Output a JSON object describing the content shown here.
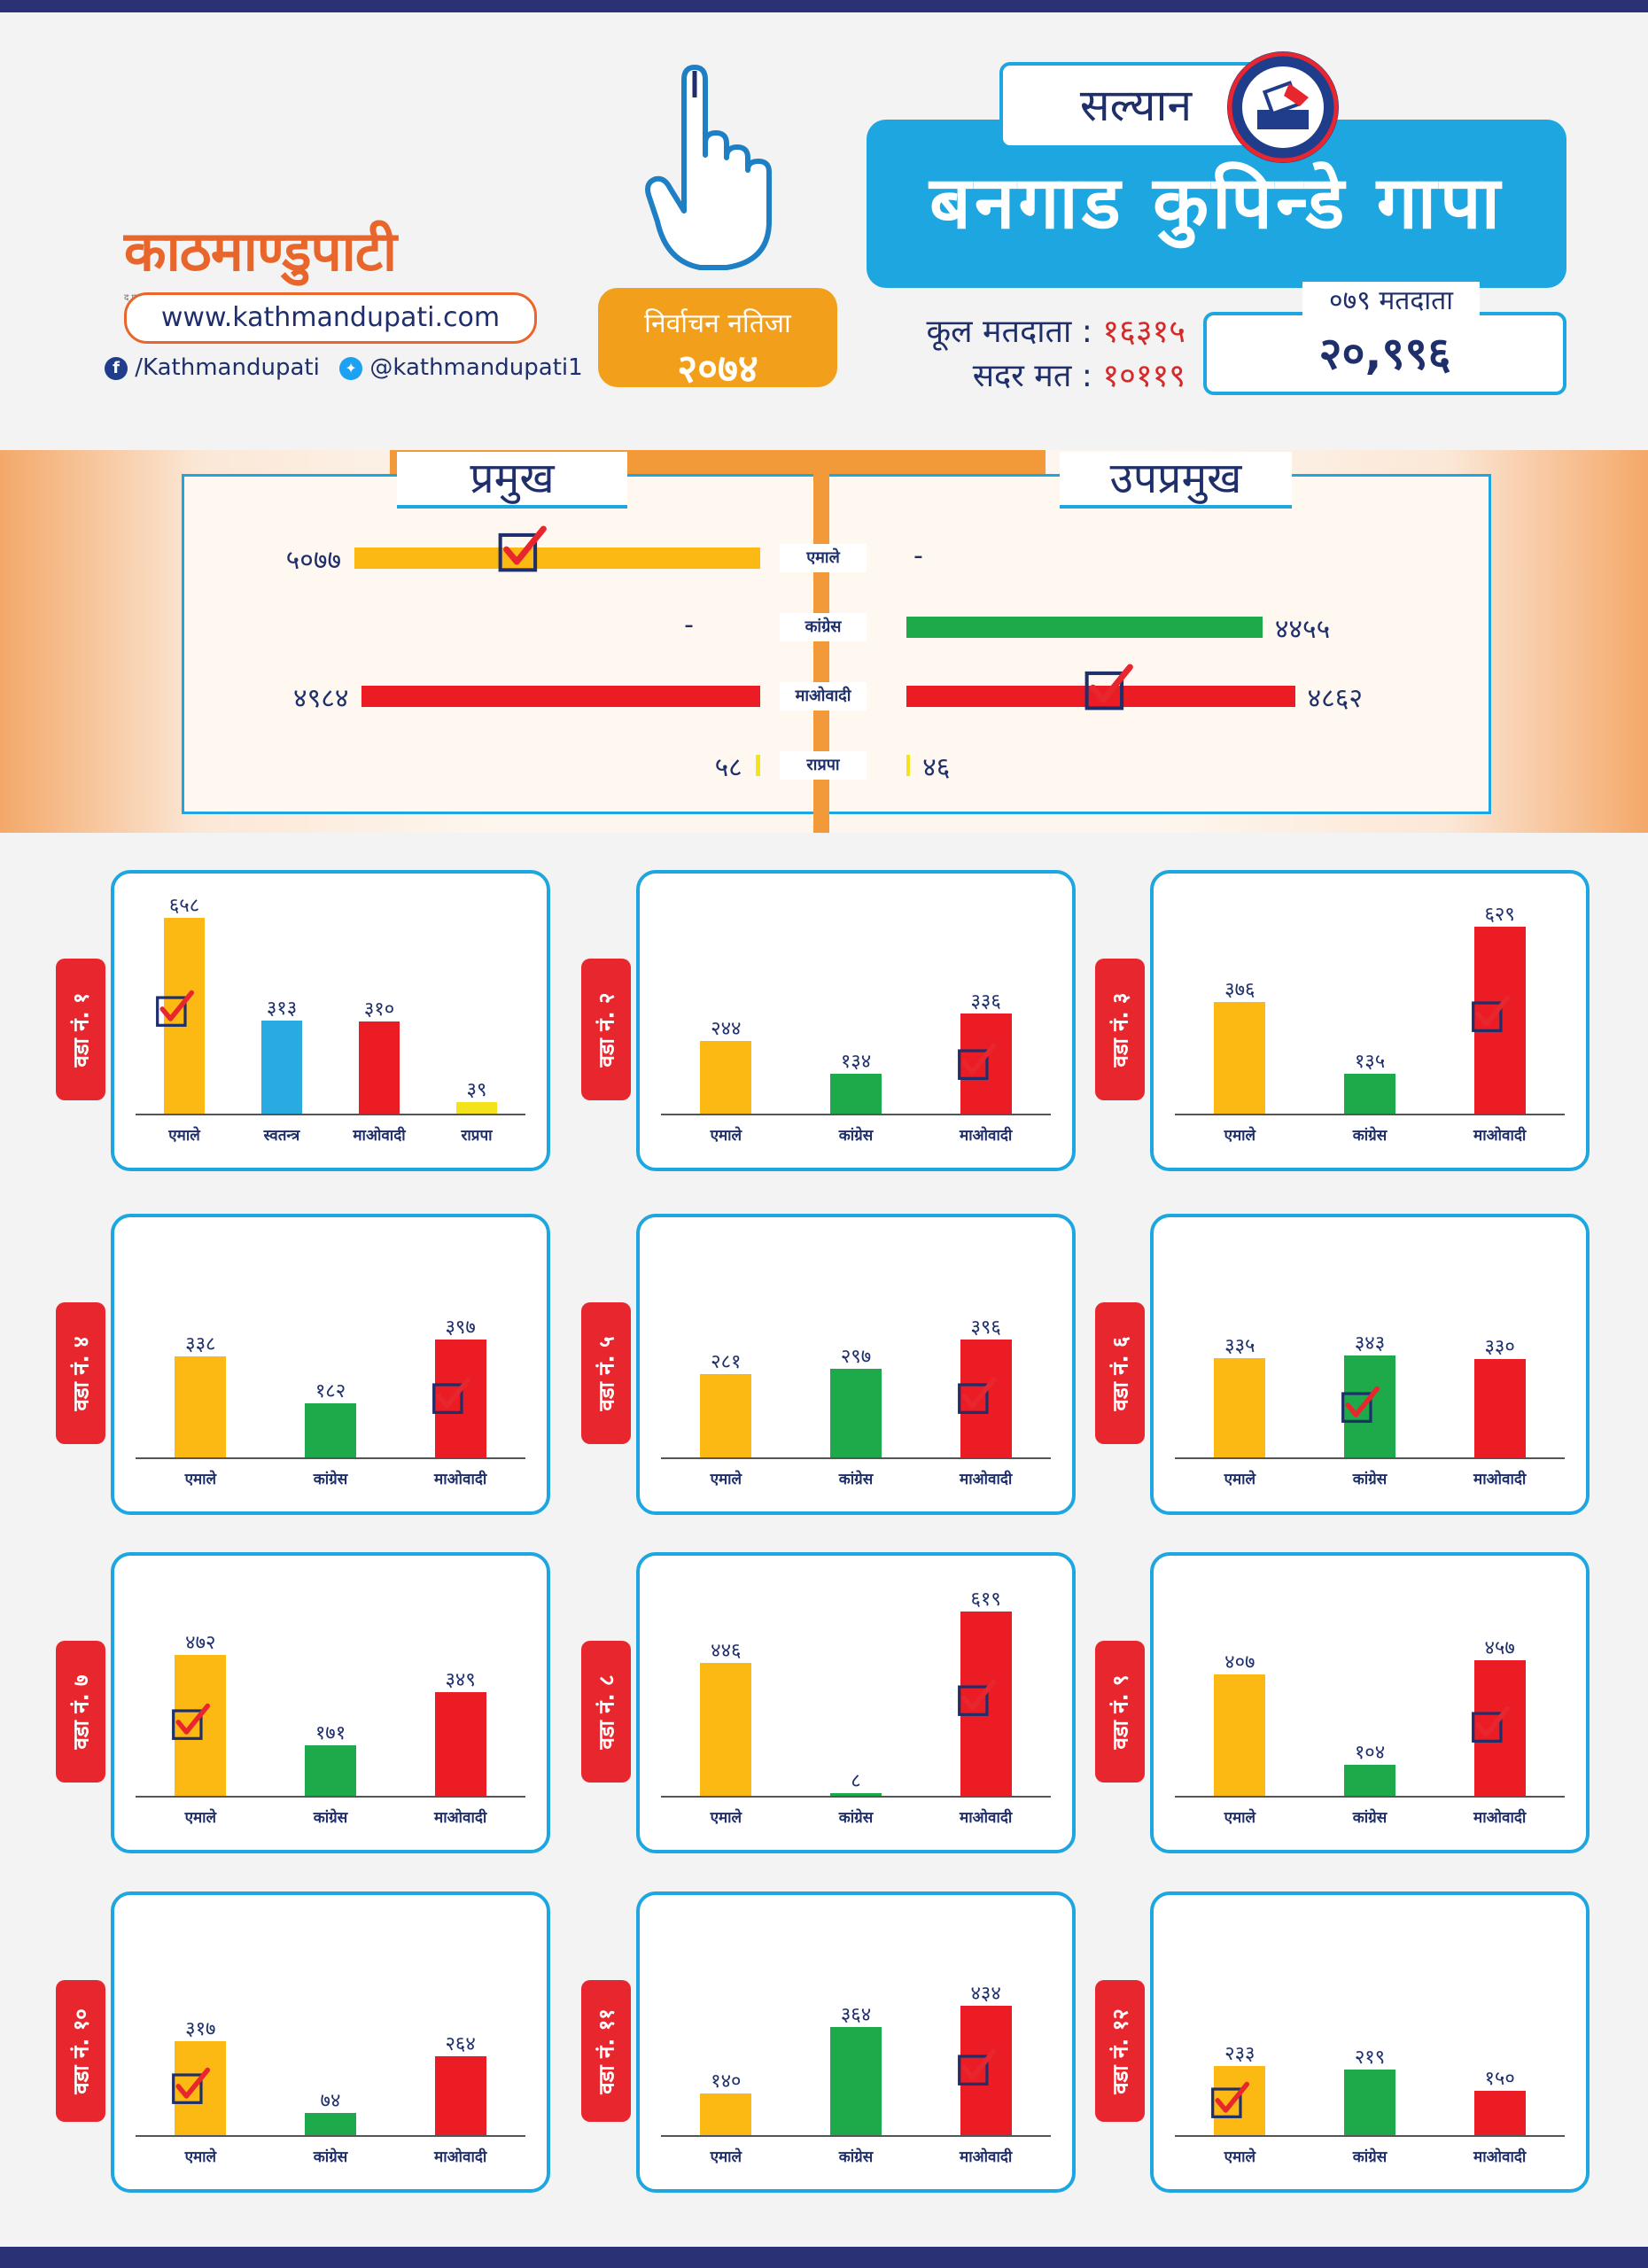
{
  "brand": {
    "logo_text": "काठमाण्डुपाटी",
    "tagline": "द फर्स्ट हाउस",
    "url": "www.kathmandupati.com",
    "facebook": "/Kathmandupati",
    "twitter": "@kathmandupati1"
  },
  "header": {
    "result_line1": "निर्वाचन नतिजा",
    "result_line2": "२०७४",
    "district": "सल्यान",
    "municipality": "बनगाड कुपिन्डे गापा",
    "total_voters_label": "कूल मतदाता :",
    "total_voters": "१६३१५",
    "valid_votes_label": "सदर मत :",
    "valid_votes": "१०११९",
    "voters_079_label": "०७९ मतदाता",
    "voters_079": "२०,९९६"
  },
  "colors": {
    "emale": "#fdb913",
    "congress": "#1eaa4b",
    "maoist": "#ec1c24",
    "rpp": "#f4e21d",
    "independent": "#29aae1",
    "accent": "#1ea6e0",
    "orange": "#f29a3a"
  },
  "summary": {
    "chief_title": "प्रमुख",
    "deputy_title": "उपप्रमुख",
    "rows": [
      {
        "party": "एमाले",
        "chief": "५०७७",
        "deputy": "-",
        "color": "#fdb913",
        "chief_win": true,
        "deputy_win": false
      },
      {
        "party": "कांग्रेस",
        "chief": "-",
        "deputy": "४४५५",
        "color": "#1eaa4b",
        "chief_win": false,
        "deputy_win": false
      },
      {
        "party": "माओवादी",
        "chief": "४९८४",
        "deputy": "४८६२",
        "color": "#ec1c24",
        "chief_win": false,
        "deputy_win": true
      },
      {
        "party": "राप्रपा",
        "chief": "५८",
        "deputy": "४६",
        "color": "#f4e21d",
        "chief_win": false,
        "deputy_win": false
      }
    ]
  },
  "chart_data": {
    "type": "bar",
    "title": "बनगाड कुपिन्डे गापा",
    "summary_series": [
      {
        "name": "प्रमुख",
        "categories": [
          "एमाले",
          "कांग्रेस",
          "माओवादी",
          "राप्रपा"
        ],
        "values": [
          5077,
          0,
          4984,
          58
        ]
      },
      {
        "name": "उपप्रमुख",
        "categories": [
          "एमाले",
          "कांग्रेस",
          "माओवादी",
          "राप्रपा"
        ],
        "values": [
          0,
          4455,
          4862,
          46
        ]
      }
    ],
    "wards": [
      {
        "label": "वडा नं. १",
        "categories": [
          "एमाले",
          "स्वतन्त्र",
          "माओवादी",
          "राप्रपा"
        ],
        "values": [
          658,
          313,
          310,
          39
        ],
        "value_labels": [
          "६५८",
          "३१३",
          "३१०",
          "३९"
        ],
        "winner": 0
      },
      {
        "label": "वडा नं. २",
        "categories": [
          "एमाले",
          "कांग्रेस",
          "माओवादी"
        ],
        "values": [
          244,
          134,
          336
        ],
        "value_labels": [
          "२४४",
          "१३४",
          "३३६"
        ],
        "winner": 2
      },
      {
        "label": "वडा नं. ३",
        "categories": [
          "एमाले",
          "कांग्रेस",
          "माओवादी"
        ],
        "values": [
          376,
          135,
          629
        ],
        "value_labels": [
          "३७६",
          "१३५",
          "६२९"
        ],
        "winner": 2
      },
      {
        "label": "वडा नं. ४",
        "categories": [
          "एमाले",
          "कांग्रेस",
          "माओवादी"
        ],
        "values": [
          338,
          182,
          397
        ],
        "value_labels": [
          "३३८",
          "१८२",
          "३९७"
        ],
        "winner": 2
      },
      {
        "label": "वडा नं. ५",
        "categories": [
          "एमाले",
          "कांग्रेस",
          "माओवादी"
        ],
        "values": [
          281,
          297,
          396
        ],
        "value_labels": [
          "२८१",
          "२९७",
          "३९६"
        ],
        "winner": 2
      },
      {
        "label": "वडा नं. ६",
        "categories": [
          "एमाले",
          "कांग्रेस",
          "माओवादी"
        ],
        "values": [
          335,
          343,
          330
        ],
        "value_labels": [
          "३३५",
          "३४३",
          "३३०"
        ],
        "winner": 1
      },
      {
        "label": "वडा नं. ७",
        "categories": [
          "एमाले",
          "कांग्रेस",
          "माओवादी"
        ],
        "values": [
          472,
          171,
          349
        ],
        "value_labels": [
          "४७२",
          "१७१",
          "३४९"
        ],
        "winner": 0
      },
      {
        "label": "वडा नं. ८",
        "categories": [
          "एमाले",
          "कांग्रेस",
          "माओवादी"
        ],
        "values": [
          446,
          8,
          619
        ],
        "value_labels": [
          "४४६",
          "८",
          "६१९"
        ],
        "winner": 2
      },
      {
        "label": "वडा नं. ९",
        "categories": [
          "एमाले",
          "कांग्रेस",
          "माओवादी"
        ],
        "values": [
          407,
          104,
          457
        ],
        "value_labels": [
          "४०७",
          "१०४",
          "४५७"
        ],
        "winner": 2
      },
      {
        "label": "वडा नं. १०",
        "categories": [
          "एमाले",
          "कांग्रेस",
          "माओवादी"
        ],
        "values": [
          317,
          74,
          264
        ],
        "value_labels": [
          "३१७",
          "७४",
          "२६४"
        ],
        "winner": 0
      },
      {
        "label": "वडा नं. ११",
        "categories": [
          "एमाले",
          "कांग्रेस",
          "माओवादी"
        ],
        "values": [
          140,
          364,
          434
        ],
        "value_labels": [
          "१४०",
          "३६४",
          "४३४"
        ],
        "winner": 2
      },
      {
        "label": "वडा नं. १२",
        "categories": [
          "एमाले",
          "कांग्रेस",
          "माओवादी"
        ],
        "values": [
          233,
          219,
          150
        ],
        "value_labels": [
          "२३३",
          "२१९",
          "१५०"
        ],
        "winner": 0
      }
    ]
  }
}
